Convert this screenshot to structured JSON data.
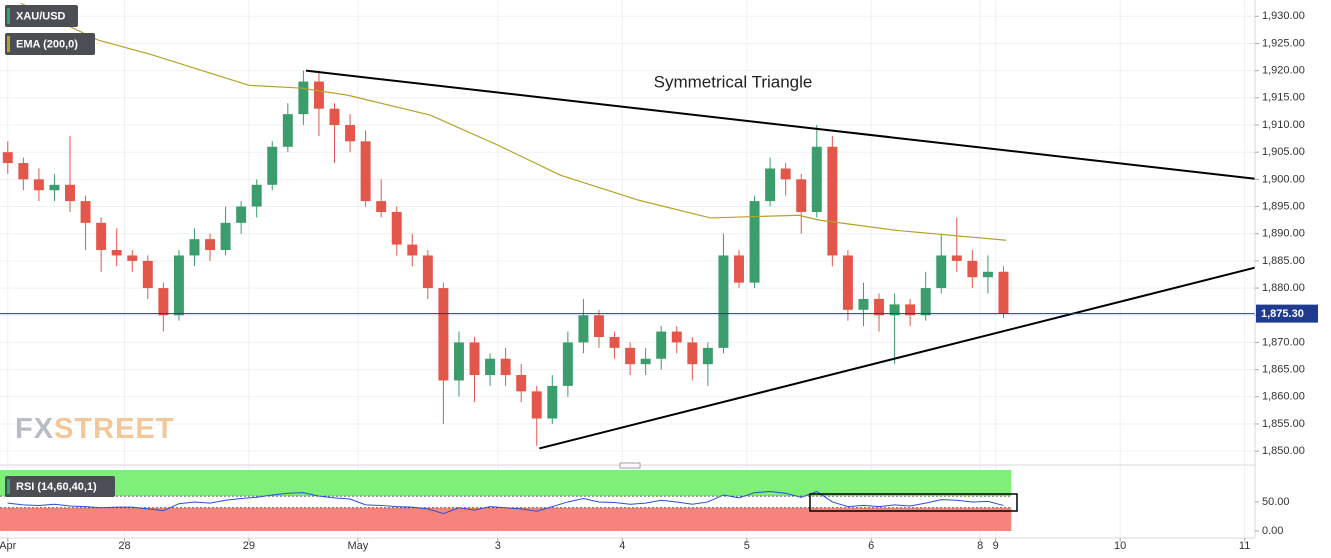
{
  "chart_data": [
    {
      "type": "candlestick",
      "symbol": "XAU/USD",
      "indicator": "EMA (200,0)",
      "annotation": "Symmetrical Triangle",
      "watermark": [
        "FX",
        "STREET"
      ],
      "up_color": "#3b9c6c",
      "down_color": "#e3574a",
      "x": [
        0,
        3,
        6,
        9,
        12,
        15,
        18,
        21,
        24,
        27,
        30,
        33,
        36,
        39,
        42,
        45,
        48,
        51,
        54,
        57,
        60,
        63,
        66,
        69,
        72,
        75,
        78,
        81,
        84,
        87,
        90,
        93,
        96,
        99,
        102,
        105,
        108,
        111,
        114,
        117,
        120,
        123,
        126,
        129,
        132,
        135,
        138,
        141,
        144,
        147,
        150,
        153,
        156,
        159,
        162,
        165,
        168,
        171,
        174,
        177,
        180,
        183,
        186,
        189,
        192
      ],
      "open": [
        1905,
        1903,
        1900,
        1898,
        1899,
        1896,
        1892,
        1887,
        1886,
        1885,
        1880,
        1875,
        1886,
        1889,
        1887,
        1892,
        1895,
        1899,
        1906,
        1912,
        1918,
        1913,
        1910,
        1907,
        1896,
        1894,
        1888,
        1886,
        1880,
        1863,
        1870,
        1864,
        1867,
        1864,
        1861,
        1856,
        1862,
        1870,
        1875,
        1871,
        1869,
        1866,
        1867,
        1872,
        1870,
        1866,
        1869,
        1886,
        1881,
        1896,
        1902,
        1900,
        1894,
        1906,
        1886,
        1876,
        1878,
        1875,
        1877,
        1875,
        1880,
        1886,
        1885,
        1882,
        1883
      ],
      "high": [
        1907,
        1904,
        1902,
        1901,
        1908,
        1897,
        1893,
        1891,
        1887,
        1886,
        1881,
        1887,
        1891,
        1890,
        1895,
        1896,
        1900,
        1907,
        1914,
        1920,
        1920,
        1914,
        1912,
        1909,
        1900,
        1895,
        1890,
        1887,
        1881,
        1872,
        1871,
        1868,
        1869,
        1866,
        1862,
        1864,
        1872,
        1878,
        1876,
        1872,
        1870,
        1869,
        1873,
        1873,
        1871,
        1870,
        1890,
        1887,
        1897,
        1904,
        1903,
        1901,
        1910,
        1908,
        1887,
        1881,
        1879,
        1879,
        1878,
        1883,
        1890,
        1893,
        1887,
        1886,
        1884
      ],
      "low": [
        1901,
        1898,
        1896,
        1896,
        1894,
        1887,
        1883,
        1884,
        1883,
        1878,
        1872,
        1874,
        1884,
        1885,
        1886,
        1890,
        1893,
        1898,
        1905,
        1910,
        1908,
        1903,
        1905,
        1895,
        1893,
        1886,
        1884,
        1878,
        1855,
        1860,
        1859,
        1862,
        1862,
        1859,
        1851,
        1855,
        1860,
        1868,
        1869,
        1867,
        1864,
        1864,
        1865,
        1868,
        1863,
        1862,
        1868,
        1880,
        1880,
        1895,
        1897,
        1890,
        1893,
        1884,
        1874,
        1873,
        1872,
        1866,
        1873,
        1874,
        1879,
        1883,
        1880,
        1879,
        1874.5
      ],
      "close": [
        1903,
        1900,
        1898,
        1899,
        1896,
        1892,
        1887,
        1886,
        1885,
        1880,
        1875,
        1886,
        1889,
        1887,
        1892,
        1895,
        1899,
        1906,
        1912,
        1918,
        1913,
        1910,
        1907,
        1896,
        1894,
        1888,
        1886,
        1880,
        1863,
        1870,
        1864,
        1867,
        1864,
        1861,
        1856,
        1862,
        1870,
        1875,
        1871,
        1869,
        1866,
        1867,
        1872,
        1870,
        1866,
        1869,
        1886,
        1881,
        1896,
        1902,
        1900,
        1894,
        1906,
        1886,
        1876,
        1878,
        1875,
        1877,
        1875,
        1880,
        1886,
        1885,
        1882,
        1883,
        1875.3
      ],
      "ema": {
        "name": "EMA (200,0)",
        "color": "#b5a22a",
        "x": [
          4,
          19,
          29,
          48,
          58,
          67,
          83,
          96,
          108,
          123,
          137,
          154,
          158,
          173,
          194
        ],
        "values": [
          1932.4,
          1925.6,
          1923,
          1917.3,
          1916.8,
          1915.5,
          1911.8,
          1906.3,
          1900.8,
          1896.2,
          1892.9,
          1893.4,
          1892.5,
          1890.6,
          1888.8
        ]
      },
      "last_price": {
        "value": 1875.3,
        "label": "1,875.30"
      },
      "trendlines": [
        {
          "x": [
            59,
            243
          ],
          "y": [
            1920,
            1900
          ]
        },
        {
          "x": [
            104,
            243
          ],
          "y": [
            1850.5,
            1884
          ]
        }
      ],
      "xlim": [
        0,
        242
      ],
      "xticks": [
        {
          "value": 1.5,
          "label": "Apr"
        },
        {
          "value": 24,
          "label": "28"
        },
        {
          "value": 48,
          "label": "29"
        },
        {
          "value": 69,
          "label": "May"
        },
        {
          "value": 96,
          "label": "3"
        },
        {
          "value": 120,
          "label": "4"
        },
        {
          "value": 144,
          "label": "5"
        },
        {
          "value": 168,
          "label": "6"
        },
        {
          "value": 189,
          "label": "8"
        },
        {
          "value": 192,
          "label": "9"
        },
        {
          "value": 216,
          "label": "10"
        },
        {
          "value": 240,
          "label": "11"
        }
      ],
      "ylim": [
        1848,
        1933
      ],
      "yticks": [
        {
          "value": 1850,
          "label": "1,850.00"
        },
        {
          "value": 1855,
          "label": "1,855.00"
        },
        {
          "value": 1860,
          "label": "1,860.00"
        },
        {
          "value": 1865,
          "label": "1,865.00"
        },
        {
          "value": 1870,
          "label": "1,870.00"
        },
        {
          "value": 1875,
          "label": "1,875.00"
        },
        {
          "value": 1880,
          "label": "1,880.00"
        },
        {
          "value": 1885,
          "label": "1,885.00"
        },
        {
          "value": 1890,
          "label": "1,890.00"
        },
        {
          "value": 1895,
          "label": "1,895.00"
        },
        {
          "value": 1900,
          "label": "1,900.00"
        },
        {
          "value": 1905,
          "label": "1,905.00"
        },
        {
          "value": 1910,
          "label": "1,910.00"
        },
        {
          "value": 1915,
          "label": "1,915.00"
        },
        {
          "value": 1920,
          "label": "1,920.00"
        },
        {
          "value": 1925,
          "label": "1,925.00"
        },
        {
          "value": 1930,
          "label": "1,930.00"
        }
      ],
      "grid": true
    },
    {
      "type": "rsi",
      "name": "RSI (14,60,40,1)",
      "color": "#2b4fd8",
      "upper": 60,
      "lower": 40,
      "upper_color": "#7ef07a",
      "lower_color": "#f7837d",
      "values": [
        48,
        45,
        44,
        46,
        43,
        42,
        40,
        41,
        41,
        38,
        35,
        47,
        50,
        48,
        53,
        56,
        58,
        62,
        65,
        66,
        60,
        57,
        55,
        45,
        44,
        42,
        41,
        38,
        30,
        40,
        36,
        42,
        40,
        38,
        34,
        42,
        50,
        56,
        50,
        49,
        46,
        48,
        53,
        50,
        46,
        50,
        62,
        57,
        66,
        68,
        65,
        58,
        68,
        50,
        42,
        44,
        42,
        45,
        43,
        48,
        54,
        53,
        50,
        51,
        44
      ],
      "ylim": [
        0,
        105
      ],
      "yticks": [
        {
          "value": 0,
          "label": "0.00"
        },
        {
          "value": 50,
          "label": "50.00"
        }
      ]
    }
  ]
}
